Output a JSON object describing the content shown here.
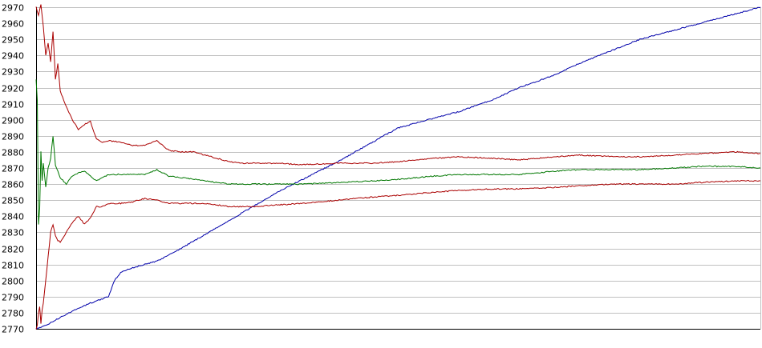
{
  "chart_data": {
    "type": "line",
    "title": "",
    "xlabel": "",
    "ylabel": "",
    "ylim": [
      2770,
      2970
    ],
    "yticks": [
      2770,
      2780,
      2790,
      2800,
      2810,
      2820,
      2830,
      2840,
      2850,
      2860,
      2870,
      2880,
      2890,
      2900,
      2910,
      2920,
      2930,
      2940,
      2950,
      2960,
      2970
    ],
    "xlim": [
      0,
      600
    ],
    "grid": true,
    "legend": "none",
    "series": [
      {
        "color": "#0000aa",
        "x": [
          0,
          8,
          15,
          30,
          45,
          60,
          65,
          70,
          80,
          100,
          120,
          150,
          200,
          250,
          300,
          350,
          380,
          400,
          430,
          450,
          480,
          500,
          520,
          550,
          580,
          600
        ],
        "values": [
          2770,
          2772,
          2775,
          2781,
          2786,
          2790,
          2800,
          2805,
          2808,
          2812,
          2820,
          2833,
          2855,
          2874,
          2895,
          2905,
          2913,
          2920,
          2928,
          2935,
          2944,
          2950,
          2954,
          2960,
          2966,
          2970
        ]
      },
      {
        "color": "#aa0000",
        "x": [
          0,
          2,
          4,
          6,
          8,
          10,
          12,
          14,
          16,
          18,
          20,
          25,
          30,
          35,
          40,
          45,
          50,
          55,
          60,
          70,
          80,
          90,
          100,
          110,
          120,
          130,
          140,
          150,
          160,
          170,
          180,
          200,
          220,
          250,
          280,
          300,
          330,
          350,
          380,
          400,
          430,
          450,
          480,
          500,
          530,
          550,
          580,
          600
        ],
        "values": [
          2970,
          2965,
          2972,
          2958,
          2940,
          2948,
          2936,
          2955,
          2925,
          2935,
          2918,
          2908,
          2900,
          2894,
          2897,
          2899,
          2888,
          2886,
          2887,
          2886,
          2884,
          2884,
          2887,
          2881,
          2880,
          2880,
          2878,
          2876,
          2874,
          2873,
          2873,
          2873,
          2872,
          2873,
          2873,
          2874,
          2876,
          2877,
          2876,
          2875,
          2877,
          2878,
          2877,
          2877,
          2878,
          2879,
          2880,
          2879
        ]
      },
      {
        "color": "#007700",
        "x": [
          0,
          1,
          2,
          3,
          4,
          5,
          6,
          8,
          10,
          12,
          14,
          16,
          18,
          20,
          25,
          30,
          35,
          40,
          45,
          50,
          55,
          60,
          70,
          80,
          90,
          100,
          110,
          120,
          130,
          140,
          150,
          160,
          170,
          180,
          200,
          220,
          250,
          280,
          300,
          330,
          350,
          380,
          400,
          430,
          450,
          480,
          500,
          530,
          550,
          580,
          600
        ],
        "values": [
          2925,
          2912,
          2835,
          2845,
          2880,
          2862,
          2873,
          2858,
          2870,
          2876,
          2890,
          2872,
          2868,
          2864,
          2860,
          2865,
          2867,
          2868,
          2865,
          2862,
          2864,
          2866,
          2866,
          2866,
          2866,
          2869,
          2865,
          2864,
          2863,
          2862,
          2861,
          2860,
          2860,
          2860,
          2860,
          2860,
          2861,
          2862,
          2863,
          2865,
          2866,
          2866,
          2866,
          2868,
          2869,
          2869,
          2869,
          2870,
          2871,
          2871,
          2870
        ]
      },
      {
        "color": "#aa0000",
        "x": [
          0,
          1,
          2,
          3,
          4,
          5,
          6,
          8,
          10,
          12,
          14,
          16,
          18,
          20,
          25,
          30,
          35,
          40,
          45,
          50,
          55,
          60,
          70,
          80,
          90,
          100,
          110,
          120,
          130,
          140,
          150,
          160,
          170,
          180,
          200,
          220,
          250,
          280,
          300,
          330,
          350,
          380,
          400,
          430,
          450,
          480,
          500,
          530,
          550,
          580,
          600
        ],
        "values": [
          2770,
          2772,
          2780,
          2784,
          2773,
          2782,
          2786,
          2800,
          2815,
          2830,
          2835,
          2828,
          2825,
          2824,
          2830,
          2836,
          2840,
          2835,
          2839,
          2846,
          2846,
          2848,
          2848,
          2849,
          2851,
          2850,
          2848,
          2848,
          2848,
          2848,
          2847,
          2846,
          2846,
          2846,
          2847,
          2848,
          2850,
          2852,
          2853,
          2855,
          2856,
          2857,
          2857,
          2858,
          2859,
          2860,
          2860,
          2860,
          2861,
          2862,
          2862
        ]
      }
    ]
  }
}
